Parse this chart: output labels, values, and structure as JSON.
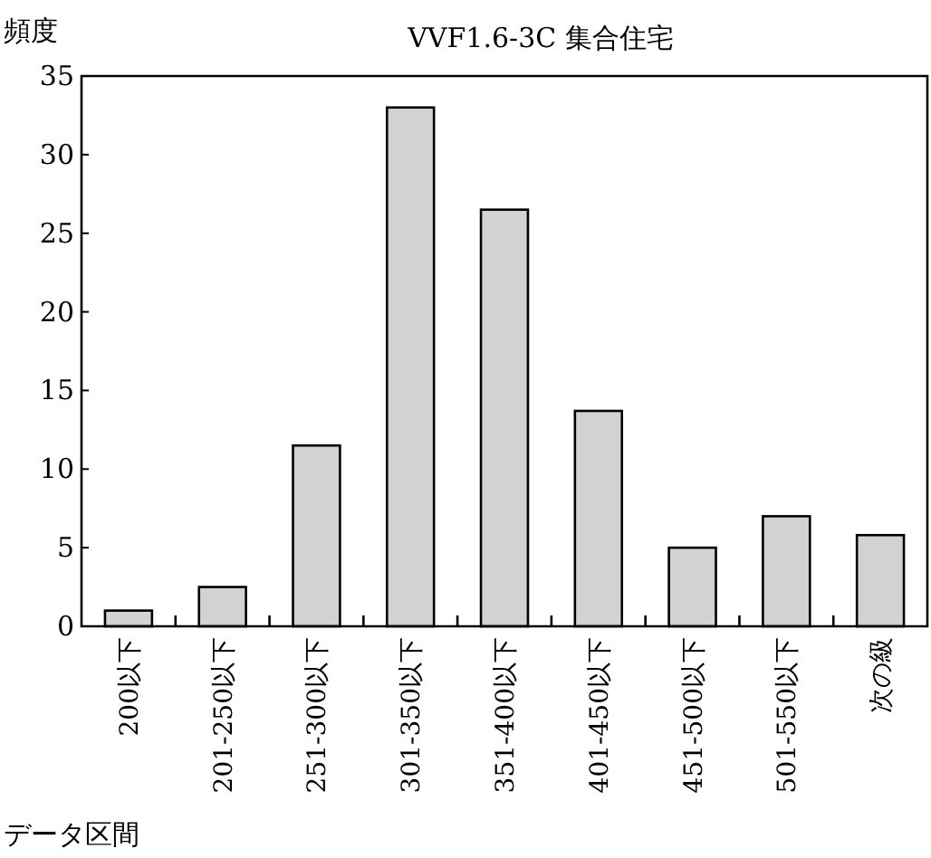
{
  "chart_data": {
    "type": "bar",
    "title": "VVF1.6-3C 集合住宅",
    "xlabel": "データ区間",
    "ylabel": "頻度",
    "categories": [
      "200以下",
      "201-250以下",
      "251-300以下",
      "301-350以下",
      "351-400以下",
      "401-450以下",
      "451-500以下",
      "501-550以下",
      "次の級"
    ],
    "values": [
      1,
      2.5,
      11.5,
      33,
      26.5,
      13.7,
      5,
      7,
      5.8
    ],
    "color": "#d2d2d2",
    "ylim": [
      0,
      35
    ],
    "yticks": [
      0,
      5,
      10,
      15,
      20,
      25,
      30,
      35
    ],
    "grid": false
  }
}
